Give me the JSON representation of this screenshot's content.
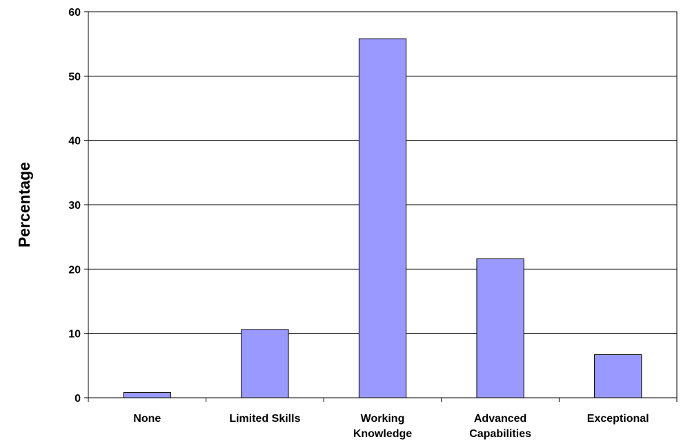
{
  "colors": {
    "bar_fill": "#9999FF",
    "bar_stroke": "#000000",
    "grid": "#000000",
    "axis": "#000000",
    "background": "#FFFFFF"
  },
  "chart_data": {
    "type": "bar",
    "title": "",
    "xlabel": "",
    "ylabel": "Percentage",
    "ylim": [
      0,
      60
    ],
    "yticks": [
      0,
      10,
      20,
      30,
      40,
      50,
      60
    ],
    "grid": true,
    "legend": "none",
    "categories": [
      [
        "None"
      ],
      [
        "Limited Skills"
      ],
      [
        "Working",
        "Knowledge"
      ],
      [
        "Advanced",
        "Capabilities"
      ],
      [
        "Exceptional"
      ]
    ],
    "values": [
      0.8,
      10.6,
      55.8,
      21.6,
      6.7
    ]
  }
}
